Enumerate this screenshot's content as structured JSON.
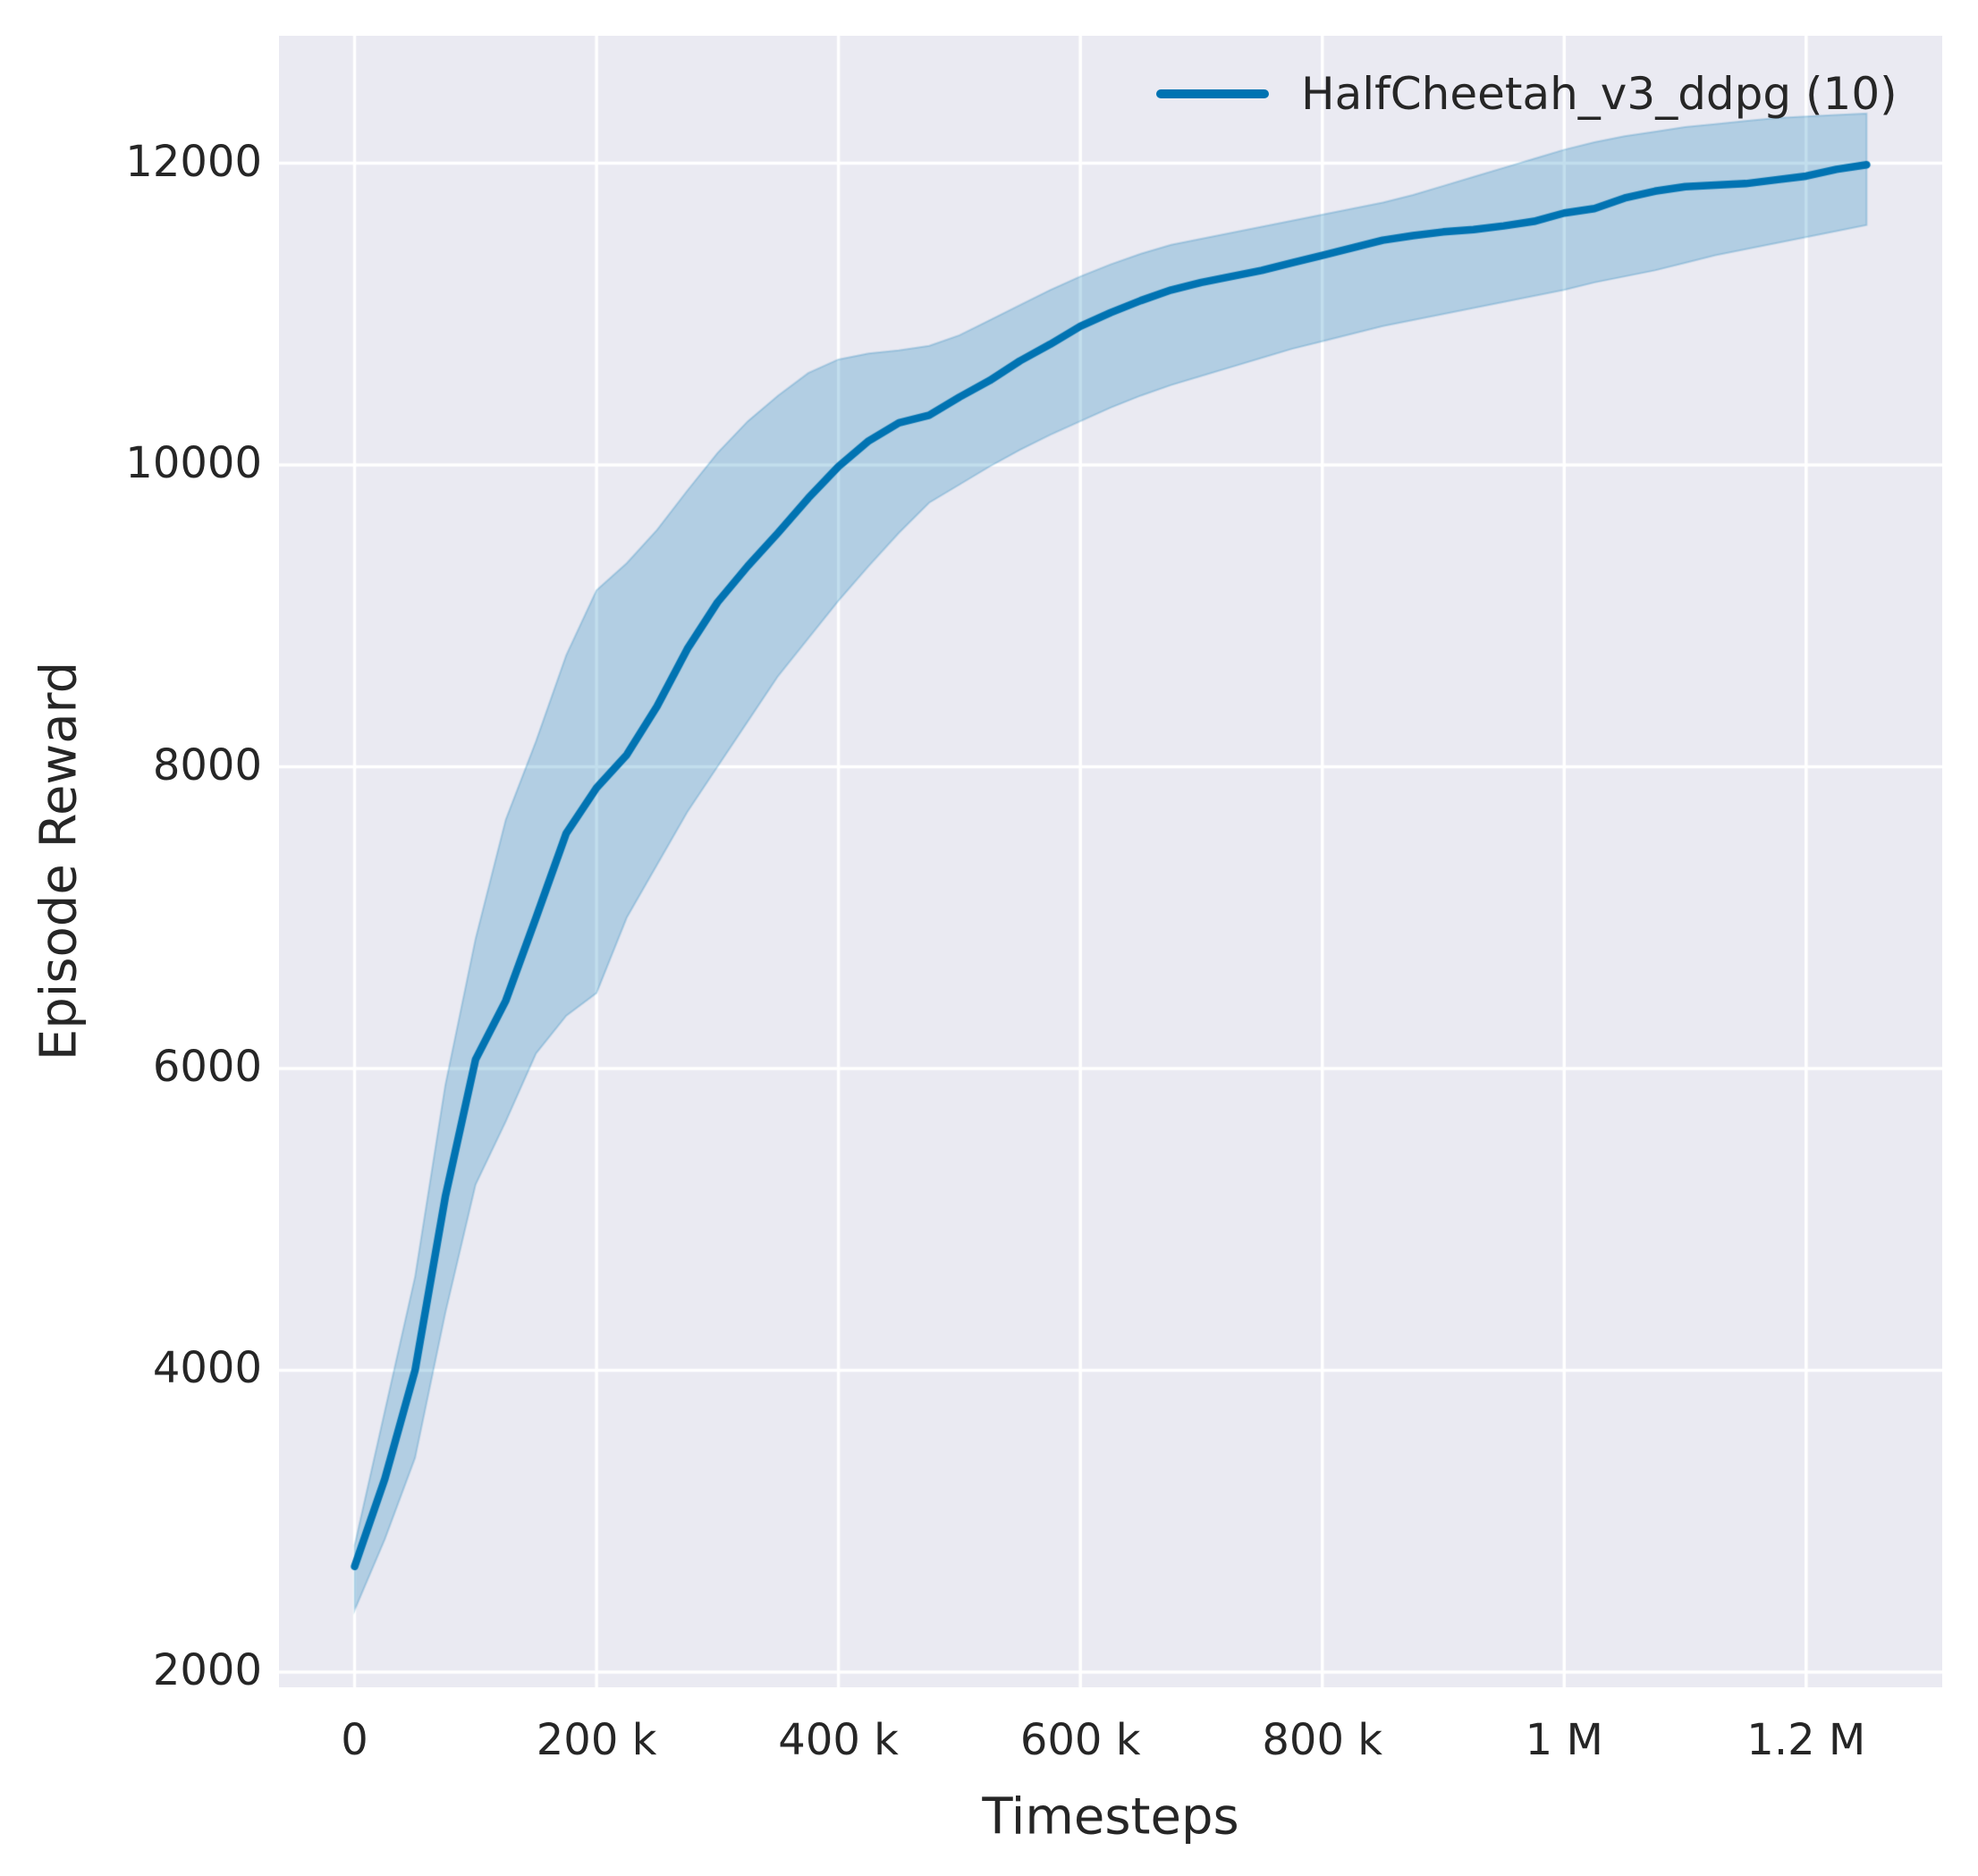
{
  "chart_data": {
    "type": "line",
    "title": "",
    "xlabel": "Timesteps",
    "ylabel": "Episode Reward",
    "grid": true,
    "legend_position": "upper right",
    "xlim": [
      -62500,
      1312500
    ],
    "ylim": [
      1899,
      12845
    ],
    "style": {
      "axes_facecolor": "#eaeaf2",
      "grid_color": "#ffffff",
      "text_color": "#262626",
      "line_color": "#0173b2",
      "band_fill": "rgba(1,115,178,0.24)",
      "band_edge": "rgba(1,115,178,0.22)"
    },
    "x_ticks": [
      {
        "value": 0,
        "label": "0"
      },
      {
        "value": 200000,
        "label": "200 k"
      },
      {
        "value": 400000,
        "label": "400 k"
      },
      {
        "value": 600000,
        "label": "600 k"
      },
      {
        "value": 800000,
        "label": "800 k"
      },
      {
        "value": 1000000,
        "label": "1 M"
      },
      {
        "value": 1200000,
        "label": "1.2 M"
      }
    ],
    "y_ticks": [
      {
        "value": 2000,
        "label": "2000"
      },
      {
        "value": 4000,
        "label": "4000"
      },
      {
        "value": 6000,
        "label": "6000"
      },
      {
        "value": 8000,
        "label": "8000"
      },
      {
        "value": 10000,
        "label": "10000"
      },
      {
        "value": 12000,
        "label": "12000"
      }
    ],
    "legend": {
      "entries": [
        {
          "label": "HalfCheetah_v3_ddpg (10)",
          "color": "#0173b2"
        }
      ]
    },
    "series": [
      {
        "name": "HalfCheetah_v3_ddpg (10)",
        "color": "#0173b2",
        "x": [
          0,
          25000,
          50000,
          75000,
          100000,
          125000,
          150000,
          175000,
          200000,
          225000,
          250000,
          275000,
          300000,
          325000,
          350000,
          375000,
          400000,
          425000,
          450000,
          475000,
          500000,
          525000,
          550000,
          575000,
          600000,
          625000,
          650000,
          675000,
          700000,
          725000,
          750000,
          775000,
          800000,
          825000,
          850000,
          875000,
          900000,
          925000,
          950000,
          975000,
          1000000,
          1025000,
          1050000,
          1075000,
          1100000,
          1125000,
          1150000,
          1175000,
          1200000,
          1225000,
          1250000
        ],
        "mean": [
          2700,
          3280,
          4000,
          5150,
          6060,
          6450,
          7000,
          7560,
          7860,
          8080,
          8400,
          8780,
          9090,
          9330,
          9550,
          9780,
          9990,
          10160,
          10280,
          10330,
          10450,
          10560,
          10690,
          10800,
          10920,
          11010,
          11090,
          11160,
          11210,
          11250,
          11290,
          11340,
          11390,
          11440,
          11490,
          11520,
          11545,
          11560,
          11585,
          11615,
          11670,
          11700,
          11770,
          11815,
          11845,
          11855,
          11865,
          11890,
          11915,
          11960,
          11990
        ],
        "band_low": [
          2410,
          2880,
          3420,
          4380,
          5230,
          5650,
          6100,
          6350,
          6500,
          7000,
          7350,
          7700,
          8000,
          8300,
          8600,
          8850,
          9100,
          9330,
          9550,
          9750,
          9870,
          9990,
          10100,
          10200,
          10290,
          10380,
          10460,
          10530,
          10590,
          10650,
          10710,
          10770,
          10820,
          10870,
          10920,
          10960,
          11000,
          11040,
          11080,
          11120,
          11160,
          11210,
          11250,
          11290,
          11340,
          11390,
          11430,
          11470,
          11510,
          11550,
          11590
        ],
        "band_high": [
          2840,
          3730,
          4620,
          5890,
          6860,
          7650,
          8170,
          8740,
          9170,
          9350,
          9570,
          9830,
          10080,
          10290,
          10460,
          10610,
          10700,
          10740,
          10760,
          10790,
          10860,
          10960,
          11060,
          11160,
          11250,
          11330,
          11400,
          11460,
          11500,
          11540,
          11580,
          11620,
          11660,
          11700,
          11740,
          11790,
          11850,
          11910,
          11970,
          12030,
          12090,
          12140,
          12180,
          12210,
          12240,
          12260,
          12280,
          12300,
          12310,
          12320,
          12330
        ]
      }
    ]
  }
}
